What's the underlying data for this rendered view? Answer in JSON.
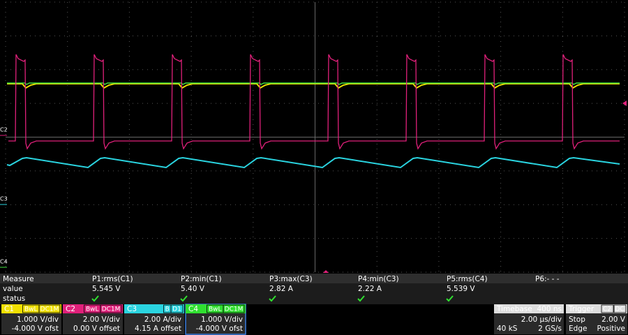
{
  "channel_markers": [
    "C2",
    "C3",
    "C4"
  ],
  "measure": {
    "header": "Measure",
    "row_labels": [
      "value",
      "status"
    ],
    "columns": [
      {
        "name": "P1:rms(C1)",
        "value": "5.545 V"
      },
      {
        "name": "P2:min(C1)",
        "value": "5.40 V"
      },
      {
        "name": "P3:max(C3)",
        "value": "2.82 A"
      },
      {
        "name": "P4:min(C3)",
        "value": "2.22 A"
      },
      {
        "name": "P5:rms(C4)",
        "value": "5.539 V"
      },
      {
        "name": "P6:- - -"
      }
    ]
  },
  "channels": [
    {
      "label": "C1",
      "tags": [
        "BwL",
        "DC1M"
      ],
      "scale": "1.000 V/div",
      "offset": "-4.000 V ofst"
    },
    {
      "label": "C2",
      "tags": [
        "BwL",
        "DC1M"
      ],
      "scale": "2.00 V/div",
      "offset": "0.00 V offset"
    },
    {
      "label": "C3",
      "tags": [
        "B",
        "D1"
      ],
      "scale": "2.00 A/div",
      "offset": "4.15 A offset"
    },
    {
      "label": "C4",
      "tags": [
        "BwL",
        "DC1M"
      ],
      "scale": "1.000 V/div",
      "offset": "-4.000 V ofst"
    }
  ],
  "timebase": {
    "label": "Timebase",
    "delay": "400 ns",
    "scale": "2.00 µs/div",
    "samples": "40 kS",
    "rate": "2 GS/s"
  },
  "trigger": {
    "label": "Trigger",
    "source": "C2",
    "coupling": "DC",
    "mode": "Stop",
    "level": "2.00 V",
    "type": "Edge",
    "slope": "Positive"
  }
}
